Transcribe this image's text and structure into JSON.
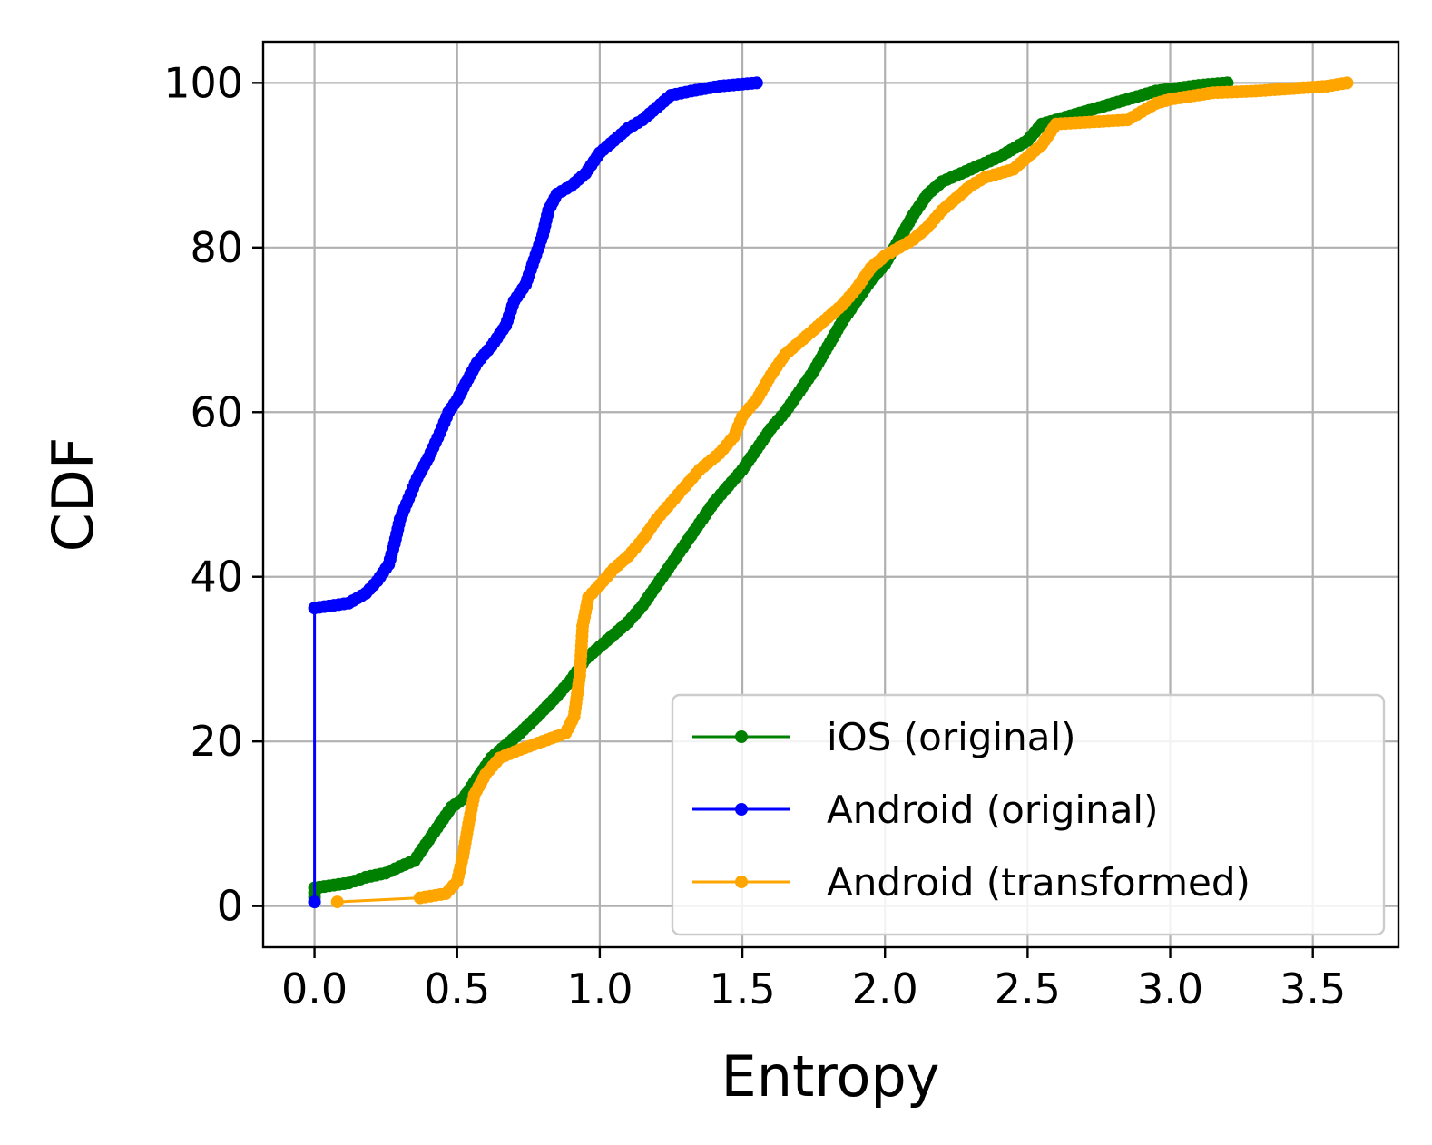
{
  "chart_data": {
    "type": "line",
    "title": "",
    "xlabel": "Entropy",
    "ylabel": "CDF",
    "xlim": [
      -0.18,
      3.8
    ],
    "ylim": [
      -5,
      105
    ],
    "x_ticks": [
      "0.0",
      "0.5",
      "1.0",
      "1.5",
      "2.0",
      "2.5",
      "3.0",
      "3.5"
    ],
    "y_ticks": [
      "0",
      "20",
      "40",
      "60",
      "80",
      "100"
    ],
    "grid": true,
    "legend_position": "lower-right",
    "series": [
      {
        "name": "iOS (original)",
        "color": "#008000",
        "points": [
          [
            0.0,
            0.5
          ],
          [
            0.0,
            2.2
          ],
          [
            0.12,
            2.8
          ],
          [
            0.18,
            3.5
          ],
          [
            0.25,
            4.0
          ],
          [
            0.3,
            4.8
          ],
          [
            0.35,
            5.5
          ],
          [
            0.38,
            7.0
          ],
          [
            0.42,
            9.0
          ],
          [
            0.45,
            10.5
          ],
          [
            0.48,
            12.0
          ],
          [
            0.52,
            13.0
          ],
          [
            0.55,
            14.5
          ],
          [
            0.58,
            16.0
          ],
          [
            0.62,
            18.0
          ],
          [
            0.67,
            19.5
          ],
          [
            0.72,
            21.0
          ],
          [
            0.78,
            23.0
          ],
          [
            0.85,
            25.5
          ],
          [
            0.9,
            27.5
          ],
          [
            0.95,
            30.0
          ],
          [
            1.0,
            31.5
          ],
          [
            1.05,
            33.0
          ],
          [
            1.1,
            34.5
          ],
          [
            1.15,
            36.5
          ],
          [
            1.2,
            39.0
          ],
          [
            1.25,
            41.5
          ],
          [
            1.3,
            44.0
          ],
          [
            1.35,
            46.5
          ],
          [
            1.4,
            49.0
          ],
          [
            1.45,
            51.0
          ],
          [
            1.5,
            53.0
          ],
          [
            1.55,
            55.5
          ],
          [
            1.6,
            58.0
          ],
          [
            1.65,
            60.0
          ],
          [
            1.7,
            62.5
          ],
          [
            1.75,
            65.0
          ],
          [
            1.8,
            68.0
          ],
          [
            1.85,
            71.0
          ],
          [
            1.9,
            73.5
          ],
          [
            1.95,
            76.0
          ],
          [
            2.0,
            78.0
          ],
          [
            2.05,
            81.0
          ],
          [
            2.1,
            84.0
          ],
          [
            2.15,
            86.5
          ],
          [
            2.2,
            88.0
          ],
          [
            2.3,
            89.5
          ],
          [
            2.4,
            91.0
          ],
          [
            2.5,
            93.0
          ],
          [
            2.55,
            95.0
          ],
          [
            2.65,
            96.0
          ],
          [
            2.75,
            97.0
          ],
          [
            2.85,
            98.0
          ],
          [
            2.95,
            99.0
          ],
          [
            3.1,
            99.7
          ],
          [
            3.2,
            100.0
          ]
        ]
      },
      {
        "name": "Android (original)",
        "color": "#0000ff",
        "points": [
          [
            0.0,
            0.5
          ],
          [
            0.0,
            36.2
          ],
          [
            0.12,
            36.8
          ],
          [
            0.18,
            38.0
          ],
          [
            0.22,
            39.5
          ],
          [
            0.26,
            41.5
          ],
          [
            0.28,
            44.0
          ],
          [
            0.3,
            47.0
          ],
          [
            0.33,
            49.5
          ],
          [
            0.36,
            52.0
          ],
          [
            0.4,
            54.5
          ],
          [
            0.44,
            57.5
          ],
          [
            0.47,
            60.0
          ],
          [
            0.5,
            61.5
          ],
          [
            0.53,
            63.5
          ],
          [
            0.57,
            66.0
          ],
          [
            0.62,
            68.0
          ],
          [
            0.67,
            70.5
          ],
          [
            0.7,
            73.5
          ],
          [
            0.74,
            75.5
          ],
          [
            0.77,
            78.5
          ],
          [
            0.8,
            81.5
          ],
          [
            0.82,
            84.5
          ],
          [
            0.85,
            86.5
          ],
          [
            0.9,
            87.5
          ],
          [
            0.95,
            89.0
          ],
          [
            1.0,
            91.5
          ],
          [
            1.05,
            93.0
          ],
          [
            1.1,
            94.5
          ],
          [
            1.15,
            95.5
          ],
          [
            1.2,
            97.0
          ],
          [
            1.25,
            98.5
          ],
          [
            1.32,
            99.0
          ],
          [
            1.42,
            99.6
          ],
          [
            1.55,
            100.0
          ]
        ]
      },
      {
        "name": "Android (transformed)",
        "color": "#ffa500",
        "points": [
          [
            0.08,
            0.5
          ],
          [
            0.37,
            1.0
          ],
          [
            0.46,
            1.5
          ],
          [
            0.5,
            3.0
          ],
          [
            0.52,
            6.0
          ],
          [
            0.54,
            10.0
          ],
          [
            0.56,
            13.5
          ],
          [
            0.6,
            16.0
          ],
          [
            0.65,
            18.0
          ],
          [
            0.72,
            19.0
          ],
          [
            0.8,
            20.0
          ],
          [
            0.88,
            21.0
          ],
          [
            0.91,
            23.0
          ],
          [
            0.93,
            28.0
          ],
          [
            0.94,
            34.0
          ],
          [
            0.96,
            37.5
          ],
          [
            1.0,
            39.0
          ],
          [
            1.05,
            41.0
          ],
          [
            1.1,
            42.5
          ],
          [
            1.15,
            44.5
          ],
          [
            1.2,
            47.0
          ],
          [
            1.25,
            49.0
          ],
          [
            1.3,
            51.0
          ],
          [
            1.35,
            53.0
          ],
          [
            1.42,
            55.0
          ],
          [
            1.47,
            57.0
          ],
          [
            1.5,
            59.5
          ],
          [
            1.55,
            61.5
          ],
          [
            1.6,
            64.5
          ],
          [
            1.65,
            67.0
          ],
          [
            1.7,
            68.5
          ],
          [
            1.75,
            70.0
          ],
          [
            1.8,
            71.5
          ],
          [
            1.85,
            73.0
          ],
          [
            1.9,
            75.0
          ],
          [
            1.95,
            77.5
          ],
          [
            2.0,
            79.0
          ],
          [
            2.05,
            80.0
          ],
          [
            2.1,
            81.0
          ],
          [
            2.15,
            82.5
          ],
          [
            2.2,
            84.5
          ],
          [
            2.25,
            86.0
          ],
          [
            2.3,
            87.5
          ],
          [
            2.35,
            88.5
          ],
          [
            2.45,
            89.5
          ],
          [
            2.5,
            91.0
          ],
          [
            2.55,
            92.5
          ],
          [
            2.6,
            95.0
          ],
          [
            2.85,
            95.5
          ],
          [
            2.9,
            96.5
          ],
          [
            2.95,
            97.5
          ],
          [
            3.0,
            98.0
          ],
          [
            3.15,
            98.8
          ],
          [
            3.3,
            99.0
          ],
          [
            3.55,
            99.6
          ],
          [
            3.62,
            100.0
          ]
        ]
      }
    ]
  }
}
